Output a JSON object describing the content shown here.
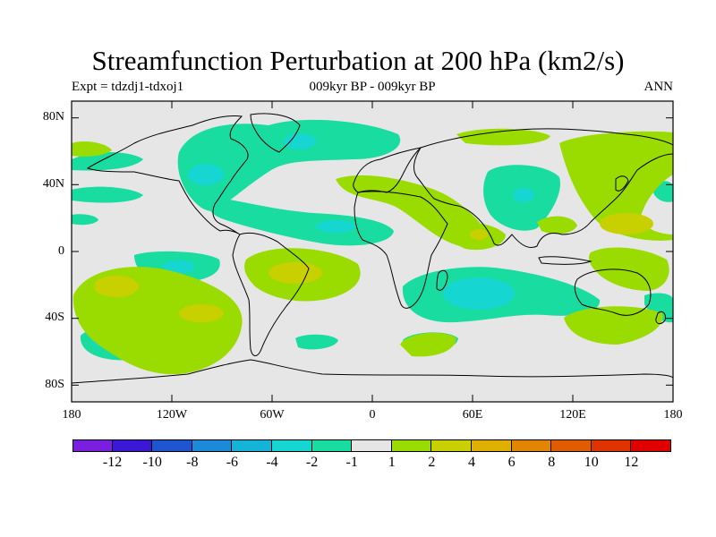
{
  "title": "Streamfunction Perturbation at 200 hPa (km2/s)",
  "left_subtitle": "Expt = tdzdj1-tdxoj1",
  "center_subtitle": "009kyr BP - 009kyr BP",
  "right_subtitle": "ANN",
  "lat_labels": [
    "80N",
    "40N",
    "0",
    "40S",
    "80S"
  ],
  "lon_labels": [
    "180",
    "120W",
    "60W",
    "0",
    "60E",
    "120E",
    "180"
  ],
  "colorbar": {
    "colors": [
      "#7a1ee0",
      "#3a18d6",
      "#1f56cf",
      "#1c8ad8",
      "#14b3d8",
      "#16d6d2",
      "#18dca0",
      "#e6e6e6",
      "#9adc00",
      "#c9d000",
      "#dfb000",
      "#e28500",
      "#e15c00",
      "#df3400",
      "#e00000"
    ],
    "labels": [
      "-12",
      "-10",
      "-8",
      "-6",
      "-4",
      "-2",
      "-1",
      "1",
      "2",
      "4",
      "6",
      "8",
      "10",
      "12"
    ]
  },
  "field_colors": {
    "neutral": "#e6e6e6",
    "neg1": "#18dca0",
    "neg2": "#16d6d2",
    "pos1": "#9adc00",
    "pos2": "#c9d000"
  },
  "coastline_color": "#000000"
}
